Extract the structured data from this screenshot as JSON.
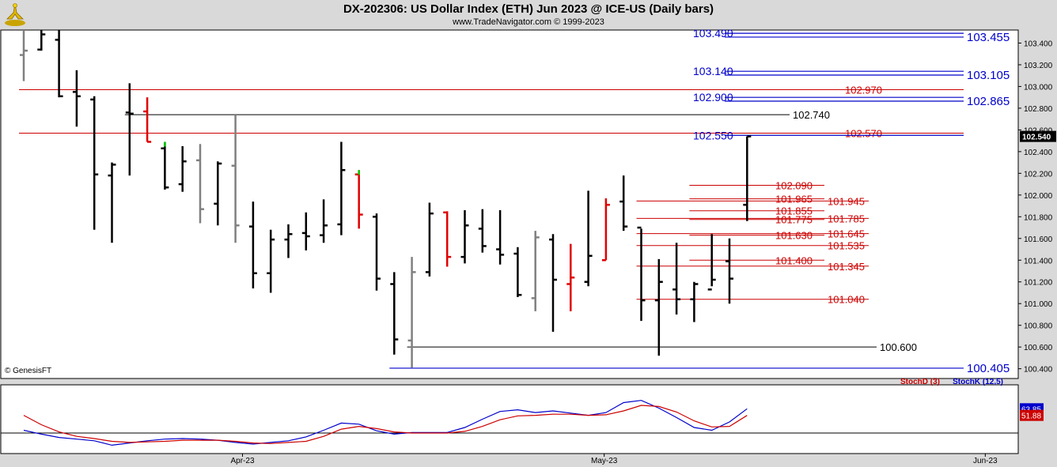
{
  "header": {
    "title": "DX-202306:  US Dollar Index (ETH) Jun 2023 @ ICE-US  (Daily bars)",
    "subtitle": "www.TradeNavigator.com © 1999-2023"
  },
  "watermark": "© GenesisFT",
  "colors": {
    "up_bar": "#000000",
    "gray_bar": "#808080",
    "red_bar": "#e00000",
    "green_tick": "#00cc00",
    "blue_level": "#0000cc",
    "red_level": "#cc0000",
    "black_level": "#000000",
    "stoch_k": "#0000cc",
    "stoch_d": "#cc0000"
  },
  "chart_data": [
    {
      "type": "ohlc",
      "title": "",
      "y_axis_side": "right",
      "ylim": [
        100.31,
        103.52
      ],
      "yticks": [
        100.4,
        100.6,
        100.8,
        101.0,
        101.2,
        101.4,
        101.6,
        101.8,
        102.0,
        102.2,
        102.4,
        102.6,
        102.8,
        103.0,
        103.2,
        103.4
      ],
      "ytick_labels": [
        "100.400",
        "100.600",
        "100.800",
        "101.000",
        "101.200",
        "101.400",
        "101.600",
        "101.800",
        "102.000",
        "102.200",
        "102.400",
        "102.600",
        "102.800",
        "103.000",
        "103.200",
        "103.400"
      ],
      "last_price_label": "102.540",
      "x_dates": [
        "2023-03-16",
        "2023-03-17",
        "2023-03-20",
        "2023-03-21",
        "2023-03-22",
        "2023-03-23",
        "2023-03-24",
        "2023-03-27",
        "2023-03-28",
        "2023-03-29",
        "2023-03-30",
        "2023-03-31",
        "2023-04-03",
        "2023-04-04",
        "2023-04-05",
        "2023-04-06",
        "2023-04-07",
        "2023-04-10",
        "2023-04-11",
        "2023-04-12",
        "2023-04-13",
        "2023-04-14",
        "2023-04-17",
        "2023-04-18",
        "2023-04-19",
        "2023-04-20",
        "2023-04-21",
        "2023-04-24",
        "2023-04-25",
        "2023-04-26",
        "2023-04-27",
        "2023-04-28",
        "2023-05-01",
        "2023-05-02",
        "2023-05-03",
        "2023-05-04",
        "2023-05-05",
        "2023-05-08",
        "2023-05-09",
        "2023-05-10",
        "2023-05-11",
        "2023-05-12"
      ],
      "bars": [
        {
          "o": 103.29,
          "h": 103.52,
          "l": 103.05,
          "c": 103.33,
          "color": "gray"
        },
        {
          "o": 103.34,
          "h": 103.52,
          "l": 103.33,
          "c": 103.48,
          "color": "black"
        },
        {
          "o": 103.43,
          "h": 103.52,
          "l": 102.9,
          "c": 102.91,
          "color": "black"
        },
        {
          "o": 102.95,
          "h": 103.15,
          "l": 102.63,
          "c": 102.91,
          "color": "black"
        },
        {
          "o": 102.88,
          "h": 102.91,
          "l": 101.68,
          "c": 102.19,
          "color": "black"
        },
        {
          "o": 102.18,
          "h": 102.3,
          "l": 101.56,
          "c": 102.28,
          "color": "black"
        },
        {
          "o": 102.76,
          "h": 103.03,
          "l": 102.18,
          "c": 102.75,
          "color": "black"
        },
        {
          "o": 102.77,
          "h": 102.9,
          "l": 102.49,
          "c": 102.49,
          "color": "red"
        },
        {
          "o": 102.43,
          "h": 102.49,
          "l": 102.05,
          "c": 102.07,
          "color": "black",
          "up_tick": "green"
        },
        {
          "o": 102.1,
          "h": 102.45,
          "l": 102.03,
          "c": 102.31,
          "color": "black"
        },
        {
          "o": 102.32,
          "h": 102.47,
          "l": 101.74,
          "c": 101.87,
          "color": "gray"
        },
        {
          "o": 101.92,
          "h": 102.31,
          "l": 101.72,
          "c": 102.29,
          "color": "black"
        },
        {
          "o": 102.27,
          "h": 102.74,
          "l": 101.56,
          "c": 101.72,
          "color": "gray"
        },
        {
          "o": 101.71,
          "h": 101.94,
          "l": 101.14,
          "c": 101.28,
          "color": "black"
        },
        {
          "o": 101.28,
          "h": 101.68,
          "l": 101.1,
          "c": 101.59,
          "color": "black"
        },
        {
          "o": 101.59,
          "h": 101.73,
          "l": 101.42,
          "c": 101.64,
          "color": "black"
        },
        {
          "o": 101.65,
          "h": 101.84,
          "l": 101.49,
          "c": 101.62,
          "color": "black"
        },
        {
          "o": 101.63,
          "h": 101.96,
          "l": 101.56,
          "c": 101.72,
          "color": "black"
        },
        {
          "o": 101.73,
          "h": 102.49,
          "l": 101.63,
          "c": 102.23,
          "color": "black"
        },
        {
          "o": 102.19,
          "h": 102.23,
          "l": 101.69,
          "c": 101.82,
          "color": "red",
          "up_tick": "green"
        },
        {
          "o": 101.8,
          "h": 101.83,
          "l": 101.12,
          "c": 101.23,
          "color": "black"
        },
        {
          "o": 101.18,
          "h": 101.29,
          "l": 100.53,
          "c": 100.67,
          "color": "black"
        },
        {
          "o": 100.66,
          "h": 101.43,
          "l": 100.41,
          "c": 101.29,
          "color": "gray"
        },
        {
          "o": 101.29,
          "h": 101.93,
          "l": 101.25,
          "c": 101.83,
          "color": "black"
        },
        {
          "o": 101.84,
          "h": 101.85,
          "l": 101.34,
          "c": 101.43,
          "color": "red"
        },
        {
          "o": 101.43,
          "h": 101.86,
          "l": 101.37,
          "c": 101.72,
          "color": "black"
        },
        {
          "o": 101.69,
          "h": 101.87,
          "l": 101.47,
          "c": 101.53,
          "color": "black"
        },
        {
          "o": 101.5,
          "h": 101.86,
          "l": 101.36,
          "c": 101.45,
          "color": "black"
        },
        {
          "o": 101.46,
          "h": 101.52,
          "l": 101.06,
          "c": 101.08,
          "color": "black"
        },
        {
          "o": 101.05,
          "h": 101.67,
          "l": 100.93,
          "c": 101.61,
          "color": "gray"
        },
        {
          "o": 101.59,
          "h": 101.64,
          "l": 100.74,
          "c": 101.22,
          "color": "black"
        },
        {
          "o": 101.18,
          "h": 101.55,
          "l": 100.93,
          "c": 101.24,
          "color": "red"
        },
        {
          "o": 101.2,
          "h": 102.04,
          "l": 101.16,
          "c": 101.44,
          "color": "black"
        },
        {
          "o": 101.4,
          "h": 101.97,
          "l": 101.4,
          "c": 101.91,
          "color": "red"
        },
        {
          "o": 101.94,
          "h": 102.18,
          "l": 101.67,
          "c": 101.71,
          "color": "black"
        },
        {
          "o": 101.7,
          "h": 101.69,
          "l": 100.84,
          "c": 101.03,
          "color": "black"
        },
        {
          "o": 101.03,
          "h": 101.41,
          "l": 100.52,
          "c": 101.2,
          "color": "black"
        },
        {
          "o": 101.13,
          "h": 101.56,
          "l": 100.9,
          "c": 101.04,
          "color": "black"
        },
        {
          "o": 101.04,
          "h": 101.2,
          "l": 100.83,
          "c": 101.18,
          "color": "black"
        },
        {
          "o": 101.13,
          "h": 101.64,
          "l": 101.16,
          "c": 101.22,
          "color": "black"
        },
        {
          "o": 101.39,
          "h": 101.6,
          "l": 101.0,
          "c": 101.23,
          "color": "black"
        },
        {
          "o": 101.91,
          "h": 102.54,
          "l": 101.76,
          "c": 102.54,
          "color": "black"
        }
      ],
      "levels": [
        {
          "label": "103.490",
          "value": 103.49,
          "color": "blue",
          "from": 40,
          "label_pos": "left"
        },
        {
          "label": "103.455",
          "value": 103.455,
          "color": "blue",
          "from": 40,
          "label_pos": "right"
        },
        {
          "label": "103.140",
          "value": 103.14,
          "color": "blue",
          "from": 40,
          "label_pos": "left"
        },
        {
          "label": "103.105",
          "value": 103.105,
          "color": "blue",
          "from": 40,
          "label_pos": "right"
        },
        {
          "label": "102.970",
          "value": 102.97,
          "color": "red",
          "from": 0,
          "label_pos": "mid"
        },
        {
          "label": "102.900",
          "value": 102.9,
          "color": "blue",
          "from": 40,
          "label_pos": "left"
        },
        {
          "label": "102.865",
          "value": 102.865,
          "color": "blue",
          "from": 40,
          "label_pos": "right"
        },
        {
          "label": "102.740",
          "value": 102.74,
          "color": "black",
          "from": 6,
          "label_pos": "mid2"
        },
        {
          "label": "102.570",
          "value": 102.57,
          "color": "red",
          "from": 0,
          "label_pos": "mid"
        },
        {
          "label": "102.550",
          "value": 102.55,
          "color": "blue",
          "from": 40,
          "label_pos": "left"
        },
        {
          "label": "102.090",
          "value": 102.09,
          "color": "red",
          "from": 38,
          "label_pos": "inner"
        },
        {
          "label": "101.965",
          "value": 101.965,
          "color": "red",
          "from": 38,
          "label_pos": "inner"
        },
        {
          "label": "101.945",
          "value": 101.945,
          "color": "red",
          "from": 35,
          "label_pos": "outer"
        },
        {
          "label": "101.855",
          "value": 101.855,
          "color": "red",
          "from": 38,
          "label_pos": "inner"
        },
        {
          "label": "101.785",
          "value": 101.785,
          "color": "red",
          "from": 35,
          "label_pos": "outer"
        },
        {
          "label": "101.775",
          "value": 101.775,
          "color": "red",
          "from": 38,
          "label_pos": "inner"
        },
        {
          "label": "101.645",
          "value": 101.645,
          "color": "red",
          "from": 35,
          "label_pos": "outer"
        },
        {
          "label": "101.630",
          "value": 101.63,
          "color": "red",
          "from": 38,
          "label_pos": "inner"
        },
        {
          "label": "101.535",
          "value": 101.535,
          "color": "red",
          "from": 35,
          "label_pos": "outer"
        },
        {
          "label": "101.400",
          "value": 101.4,
          "color": "red",
          "from": 38,
          "label_pos": "inner"
        },
        {
          "label": "101.345",
          "value": 101.345,
          "color": "red",
          "from": 35,
          "label_pos": "outer"
        },
        {
          "label": "101.040",
          "value": 101.04,
          "color": "red",
          "from": 35,
          "label_pos": "outer"
        },
        {
          "label": "100.600",
          "value": 100.6,
          "color": "black",
          "from": 22,
          "label_pos": "mid3"
        },
        {
          "label": "100.405",
          "value": 100.405,
          "color": "blue",
          "from": 21,
          "label_pos": "right"
        }
      ]
    },
    {
      "type": "line",
      "title": "",
      "legend": [
        "StochD (3)",
        "StochK (12,5)"
      ],
      "ylim": [
        0,
        100
      ],
      "last_labels": {
        "k": "63.85",
        "d": "51.88"
      },
      "series": [
        {
          "name": "StochK (12,5)",
          "key": "k",
          "values": [
            25,
            18,
            12,
            9,
            6,
            -2,
            2,
            6,
            9,
            10,
            9,
            7,
            3,
            0,
            3,
            6,
            13,
            25,
            38,
            36,
            24,
            18,
            21,
            21,
            21,
            30,
            45,
            59,
            62,
            57,
            60,
            56,
            52,
            57,
            75,
            79,
            65,
            48,
            30,
            25,
            40,
            63.85
          ]
        },
        {
          "name": "StochD (3)",
          "key": "d",
          "values": [
            52,
            35,
            22,
            14,
            10,
            5,
            3,
            4,
            5,
            7,
            7,
            7,
            5,
            2,
            1,
            3,
            5,
            14,
            27,
            32,
            28,
            22,
            20,
            20,
            20,
            23,
            32,
            44,
            51,
            52,
            54,
            54,
            52,
            53,
            60,
            70,
            68,
            58,
            42,
            31,
            32,
            51.88
          ]
        }
      ]
    }
  ],
  "x_axis": {
    "labels": [
      "Apr-23",
      "May-23",
      "Jun-23"
    ]
  }
}
